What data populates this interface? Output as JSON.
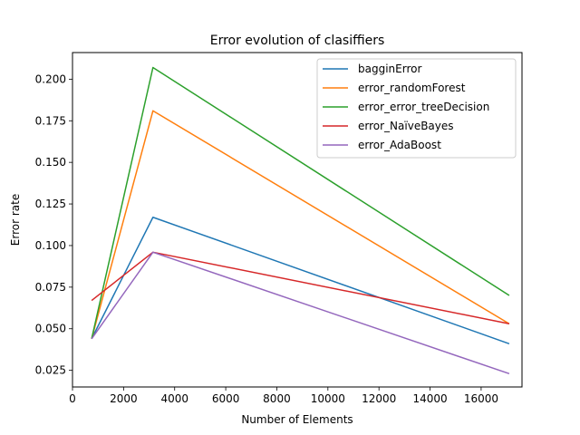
{
  "chart_data": {
    "type": "line",
    "title": "Error evolution of clasiffiers",
    "xlabel": "Number of Elements",
    "ylabel": "Error rate",
    "xlim": [
      0,
      17600
    ],
    "ylim": [
      0.015,
      0.216
    ],
    "xticks": [
      0,
      2000,
      4000,
      6000,
      8000,
      10000,
      12000,
      14000,
      16000
    ],
    "yticks": [
      0.025,
      0.05,
      0.075,
      0.1,
      0.125,
      0.15,
      0.175,
      0.2
    ],
    "ytick_labels": [
      "0.025",
      "0.050",
      "0.075",
      "0.100",
      "0.125",
      "0.150",
      "0.175",
      "0.200"
    ],
    "grid": false,
    "legend_position": "top-right",
    "series": [
      {
        "name": "bagginError",
        "color": "#1f77b4",
        "x": [
          750,
          3150,
          17100
        ],
        "y": [
          0.044,
          0.117,
          0.041
        ]
      },
      {
        "name": "error_randomForest",
        "color": "#ff7f0e",
        "x": [
          750,
          3150,
          17100
        ],
        "y": [
          0.044,
          0.181,
          0.053
        ]
      },
      {
        "name": "error_error_treeDecision",
        "color": "#2ca02c",
        "x": [
          750,
          3150,
          17100
        ],
        "y": [
          0.044,
          0.207,
          0.07
        ]
      },
      {
        "name": "error_NaïveBayes",
        "color": "#d62728",
        "x": [
          750,
          3150,
          17100
        ],
        "y": [
          0.067,
          0.096,
          0.053
        ]
      },
      {
        "name": "error_AdaBoost",
        "color": "#9467bd",
        "x": [
          750,
          3150,
          17100
        ],
        "y": [
          0.044,
          0.096,
          0.023
        ]
      }
    ]
  }
}
